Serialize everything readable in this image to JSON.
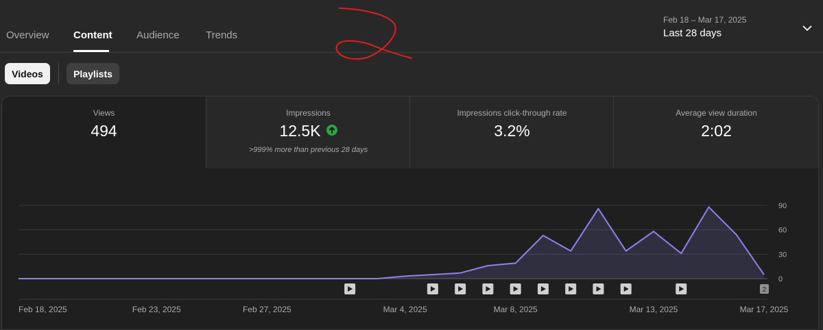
{
  "tabs": [
    "Overview",
    "Content",
    "Audience",
    "Trends"
  ],
  "date_range": {
    "range": "Feb 18 – Mar 17, 2025",
    "label": "Last 28 days"
  },
  "filters": {
    "videos": "Videos",
    "playlists": "Playlists"
  },
  "metrics": [
    {
      "label": "Views",
      "value": "494"
    },
    {
      "label": "Impressions",
      "value": "12.5K",
      "comparison": ">999% more than previous 28 days"
    },
    {
      "label": "Impressions click-through rate",
      "value": "3.2%"
    },
    {
      "label": "Average view duration",
      "value": "2:02"
    }
  ],
  "colors": {
    "line": "#8b84ee",
    "up_badge": "#2ba640"
  },
  "chart_data": {
    "type": "area",
    "x": [
      "Feb 18",
      "Feb 19",
      "Feb 20",
      "Feb 21",
      "Feb 22",
      "Feb 23",
      "Feb 24",
      "Feb 25",
      "Feb 26",
      "Feb 27",
      "Feb 28",
      "Mar 1",
      "Mar 2",
      "Mar 3",
      "Mar 4",
      "Mar 5",
      "Mar 6",
      "Mar 7",
      "Mar 8",
      "Mar 9",
      "Mar 10",
      "Mar 11",
      "Mar 12",
      "Mar 13",
      "Mar 14",
      "Mar 15",
      "Mar 16",
      "Mar 17"
    ],
    "values": [
      0,
      0,
      0,
      0,
      0,
      0,
      0,
      0,
      0,
      0,
      0,
      0,
      0,
      0,
      3,
      5,
      7,
      16,
      19,
      53,
      34,
      86,
      34,
      58,
      31,
      88,
      54,
      5
    ],
    "ylim": [
      0,
      90
    ],
    "yticks": [
      "90",
      "60",
      "30",
      "0"
    ],
    "xtick_labels": [
      {
        "index": 0,
        "label": "Feb 18, 2025"
      },
      {
        "index": 5,
        "label": "Feb 23, 2025"
      },
      {
        "index": 9,
        "label": "Feb 27, 2025"
      },
      {
        "index": 14,
        "label": "Mar 4, 2025"
      },
      {
        "index": 18,
        "label": "Mar 8, 2025"
      },
      {
        "index": 23,
        "label": "Mar 13, 2025"
      },
      {
        "index": 27,
        "label": "Mar 17, 2025"
      }
    ],
    "video_markers": [
      12,
      15,
      16,
      17,
      18,
      19,
      20,
      21,
      22,
      24
    ],
    "count_marker": {
      "index": 27,
      "label": "2"
    },
    "grid": true
  }
}
